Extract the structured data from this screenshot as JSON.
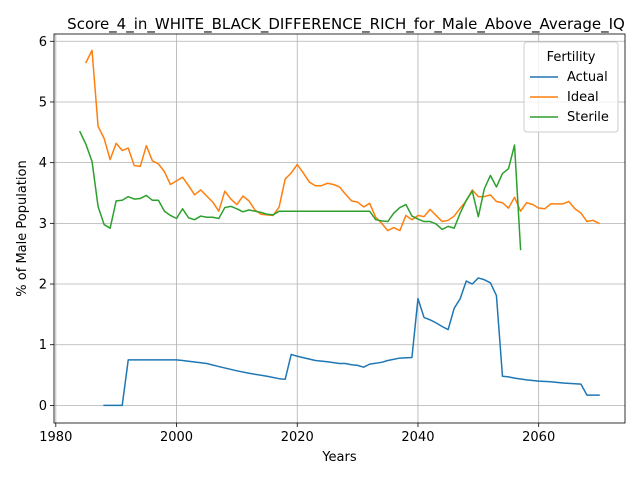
{
  "chart_data": {
    "type": "line",
    "title": "Score_4_in_WHITE_BLACK_DIFFERENCE_RICH_for_Male_Above_Average_IQ",
    "xlabel": "Years",
    "ylabel": "% of Male Population",
    "xlim": [
      1979.7,
      2074.3
    ],
    "ylim": [
      -0.29,
      6.12
    ],
    "xticks": [
      1980,
      2000,
      2020,
      2040,
      2060
    ],
    "yticks": [
      0,
      1,
      2,
      3,
      4,
      5,
      6
    ],
    "grid": true,
    "legend": {
      "title": "Fertility",
      "placement": "top-right"
    },
    "series": [
      {
        "name": "Actual",
        "color": "#1f77b4",
        "points": [
          [
            1988,
            0.0
          ],
          [
            1991,
            0.0
          ],
          [
            1992,
            0.75
          ],
          [
            2000,
            0.75
          ],
          [
            2001,
            0.74
          ],
          [
            2005,
            0.69
          ],
          [
            2007,
            0.64
          ],
          [
            2010,
            0.57
          ],
          [
            2012,
            0.53
          ],
          [
            2015,
            0.48
          ],
          [
            2017,
            0.44
          ],
          [
            2018,
            0.43
          ],
          [
            2019,
            0.84
          ],
          [
            2020,
            0.81
          ],
          [
            2023,
            0.74
          ],
          [
            2025,
            0.72
          ],
          [
            2027,
            0.69
          ],
          [
            2028,
            0.69
          ],
          [
            2029,
            0.67
          ],
          [
            2030,
            0.66
          ],
          [
            2031,
            0.63
          ],
          [
            2032,
            0.68
          ],
          [
            2034,
            0.71
          ],
          [
            2035,
            0.74
          ],
          [
            2037,
            0.78
          ],
          [
            2039,
            0.79
          ],
          [
            2040,
            1.76
          ],
          [
            2041,
            1.45
          ],
          [
            2042,
            1.41
          ],
          [
            2043,
            1.36
          ],
          [
            2044,
            1.3
          ],
          [
            2045,
            1.25
          ],
          [
            2046,
            1.6
          ],
          [
            2047,
            1.76
          ],
          [
            2048,
            2.05
          ],
          [
            2049,
            2.0
          ],
          [
            2050,
            2.1
          ],
          [
            2051,
            2.07
          ],
          [
            2052,
            2.02
          ],
          [
            2053,
            1.81
          ],
          [
            2054,
            0.48
          ],
          [
            2055,
            0.47
          ],
          [
            2056,
            0.45
          ],
          [
            2058,
            0.42
          ],
          [
            2060,
            0.4
          ],
          [
            2062,
            0.39
          ],
          [
            2064,
            0.37
          ],
          [
            2067,
            0.35
          ],
          [
            2068,
            0.17
          ],
          [
            2070,
            0.17
          ]
        ]
      },
      {
        "name": "Ideal",
        "color": "#ff7f0e",
        "points": [
          [
            1985,
            5.65
          ],
          [
            1986,
            5.85
          ],
          [
            1987,
            4.6
          ],
          [
            1988,
            4.4
          ],
          [
            1989,
            4.05
          ],
          [
            1990,
            4.32
          ],
          [
            1991,
            4.2
          ],
          [
            1992,
            4.24
          ],
          [
            1993,
            3.95
          ],
          [
            1994,
            3.94
          ],
          [
            1995,
            4.28
          ],
          [
            1996,
            4.03
          ],
          [
            1997,
            3.98
          ],
          [
            1998,
            3.85
          ],
          [
            1999,
            3.64
          ],
          [
            2000,
            3.7
          ],
          [
            2001,
            3.76
          ],
          [
            2002,
            3.62
          ],
          [
            2003,
            3.47
          ],
          [
            2004,
            3.55
          ],
          [
            2005,
            3.45
          ],
          [
            2006,
            3.35
          ],
          [
            2007,
            3.2
          ],
          [
            2008,
            3.53
          ],
          [
            2009,
            3.4
          ],
          [
            2010,
            3.31
          ],
          [
            2011,
            3.45
          ],
          [
            2012,
            3.37
          ],
          [
            2013,
            3.22
          ],
          [
            2014,
            3.15
          ],
          [
            2015,
            3.14
          ],
          [
            2016,
            3.13
          ],
          [
            2017,
            3.27
          ],
          [
            2018,
            3.73
          ],
          [
            2019,
            3.83
          ],
          [
            2020,
            3.97
          ],
          [
            2021,
            3.83
          ],
          [
            2022,
            3.68
          ],
          [
            2023,
            3.62
          ],
          [
            2024,
            3.62
          ],
          [
            2025,
            3.66
          ],
          [
            2026,
            3.64
          ],
          [
            2027,
            3.6
          ],
          [
            2028,
            3.48
          ],
          [
            2029,
            3.37
          ],
          [
            2030,
            3.35
          ],
          [
            2031,
            3.27
          ],
          [
            2032,
            3.33
          ],
          [
            2033,
            3.1
          ],
          [
            2034,
            3.0
          ],
          [
            2035,
            2.88
          ],
          [
            2036,
            2.93
          ],
          [
            2037,
            2.88
          ],
          [
            2038,
            3.13
          ],
          [
            2039,
            3.06
          ],
          [
            2040,
            3.13
          ],
          [
            2041,
            3.11
          ],
          [
            2042,
            3.23
          ],
          [
            2043,
            3.13
          ],
          [
            2044,
            3.03
          ],
          [
            2045,
            3.05
          ],
          [
            2046,
            3.12
          ],
          [
            2047,
            3.25
          ],
          [
            2048,
            3.37
          ],
          [
            2049,
            3.55
          ],
          [
            2050,
            3.44
          ],
          [
            2051,
            3.44
          ],
          [
            2052,
            3.47
          ],
          [
            2053,
            3.36
          ],
          [
            2054,
            3.34
          ],
          [
            2055,
            3.25
          ],
          [
            2056,
            3.43
          ],
          [
            2057,
            3.2
          ],
          [
            2058,
            3.34
          ],
          [
            2059,
            3.31
          ],
          [
            2060,
            3.25
          ],
          [
            2061,
            3.24
          ],
          [
            2062,
            3.32
          ],
          [
            2063,
            3.32
          ],
          [
            2064,
            3.32
          ],
          [
            2065,
            3.36
          ],
          [
            2066,
            3.24
          ],
          [
            2067,
            3.17
          ],
          [
            2068,
            3.03
          ],
          [
            2069,
            3.05
          ],
          [
            2070,
            3.0
          ]
        ]
      },
      {
        "name": "Sterile",
        "color": "#2ca02c",
        "points": [
          [
            1984,
            4.51
          ],
          [
            1985,
            4.3
          ],
          [
            1986,
            4.02
          ],
          [
            1987,
            3.28
          ],
          [
            1988,
            2.98
          ],
          [
            1989,
            2.92
          ],
          [
            1990,
            3.37
          ],
          [
            1991,
            3.38
          ],
          [
            1992,
            3.44
          ],
          [
            1993,
            3.4
          ],
          [
            1994,
            3.41
          ],
          [
            1995,
            3.46
          ],
          [
            1996,
            3.38
          ],
          [
            1997,
            3.38
          ],
          [
            1998,
            3.2
          ],
          [
            1999,
            3.13
          ],
          [
            2000,
            3.08
          ],
          [
            2001,
            3.24
          ],
          [
            2002,
            3.09
          ],
          [
            2003,
            3.06
          ],
          [
            2004,
            3.12
          ],
          [
            2005,
            3.1
          ],
          [
            2006,
            3.1
          ],
          [
            2007,
            3.08
          ],
          [
            2008,
            3.26
          ],
          [
            2009,
            3.28
          ],
          [
            2010,
            3.24
          ],
          [
            2011,
            3.19
          ],
          [
            2012,
            3.22
          ],
          [
            2013,
            3.2
          ],
          [
            2014,
            3.18
          ],
          [
            2015,
            3.15
          ],
          [
            2016,
            3.14
          ],
          [
            2017,
            3.2
          ],
          [
            2031,
            3.2
          ],
          [
            2032,
            3.2
          ],
          [
            2033,
            3.06
          ],
          [
            2034,
            3.04
          ],
          [
            2035,
            3.03
          ],
          [
            2036,
            3.17
          ],
          [
            2037,
            3.26
          ],
          [
            2038,
            3.31
          ],
          [
            2039,
            3.12
          ],
          [
            2040,
            3.07
          ],
          [
            2041,
            3.03
          ],
          [
            2042,
            3.03
          ],
          [
            2043,
            2.99
          ],
          [
            2044,
            2.9
          ],
          [
            2045,
            2.95
          ],
          [
            2046,
            2.92
          ],
          [
            2047,
            3.17
          ],
          [
            2048,
            3.38
          ],
          [
            2049,
            3.53
          ],
          [
            2050,
            3.11
          ],
          [
            2051,
            3.57
          ],
          [
            2052,
            3.79
          ],
          [
            2053,
            3.6
          ],
          [
            2054,
            3.82
          ],
          [
            2055,
            3.9
          ],
          [
            2056,
            4.29
          ],
          [
            2057,
            2.57
          ]
        ]
      }
    ]
  }
}
